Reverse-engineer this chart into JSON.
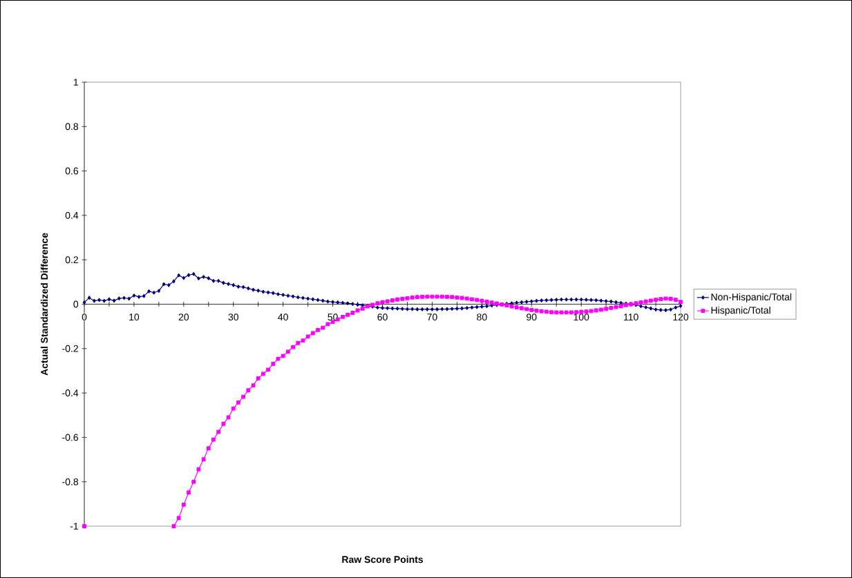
{
  "chart_data": {
    "type": "line",
    "xlabel": "Raw Score Points",
    "ylabel": "Actual Standardized Difference",
    "x": [
      0,
      1,
      2,
      3,
      4,
      5,
      6,
      7,
      8,
      9,
      10,
      11,
      12,
      13,
      14,
      15,
      16,
      17,
      18,
      19,
      20,
      21,
      22,
      23,
      24,
      25,
      26,
      27,
      28,
      29,
      30,
      31,
      32,
      33,
      34,
      35,
      36,
      37,
      38,
      39,
      40,
      41,
      42,
      43,
      44,
      45,
      46,
      47,
      48,
      49,
      50,
      51,
      52,
      53,
      54,
      55,
      56,
      57,
      58,
      59,
      60,
      61,
      62,
      63,
      64,
      65,
      66,
      67,
      68,
      69,
      70,
      71,
      72,
      73,
      74,
      75,
      76,
      77,
      78,
      79,
      80,
      81,
      82,
      83,
      84,
      85,
      86,
      87,
      88,
      89,
      90,
      91,
      92,
      93,
      94,
      95,
      96,
      97,
      98,
      99,
      100,
      101,
      102,
      103,
      104,
      105,
      106,
      107,
      108,
      109,
      110,
      111,
      112,
      113,
      114,
      115,
      116,
      117,
      118,
      119,
      120
    ],
    "series": [
      {
        "name": "Non-Hispanic/Total",
        "color": "#000080",
        "marker": "diamond",
        "values": [
          0.008,
          0.029,
          0.015,
          0.019,
          0.015,
          0.022,
          0.016,
          0.026,
          0.028,
          0.025,
          0.039,
          0.033,
          0.037,
          0.058,
          0.052,
          0.06,
          0.09,
          0.086,
          0.103,
          0.13,
          0.118,
          0.131,
          0.136,
          0.116,
          0.123,
          0.117,
          0.105,
          0.105,
          0.096,
          0.091,
          0.086,
          0.079,
          0.077,
          0.071,
          0.065,
          0.061,
          0.056,
          0.053,
          0.05,
          0.045,
          0.042,
          0.038,
          0.035,
          0.031,
          0.028,
          0.025,
          0.022,
          0.019,
          0.016,
          0.012,
          0.01,
          0.008,
          0.006,
          0.004,
          0.001,
          -0.002,
          -0.005,
          -0.008,
          -0.011,
          -0.015,
          -0.017,
          -0.018,
          -0.019,
          -0.02,
          -0.021,
          -0.022,
          -0.022,
          -0.023,
          -0.023,
          -0.023,
          -0.023,
          -0.023,
          -0.022,
          -0.022,
          -0.021,
          -0.02,
          -0.019,
          -0.017,
          -0.015,
          -0.013,
          -0.011,
          -0.009,
          -0.006,
          -0.004,
          -0.001,
          0.002,
          0.004,
          0.007,
          0.009,
          0.011,
          0.013,
          0.015,
          0.017,
          0.018,
          0.019,
          0.02,
          0.021,
          0.021,
          0.021,
          0.021,
          0.021,
          0.02,
          0.019,
          0.018,
          0.016,
          0.014,
          0.012,
          0.009,
          0.006,
          0.003,
          0,
          -0.004,
          -0.009,
          -0.014,
          -0.019,
          -0.024,
          -0.026,
          -0.027,
          -0.024,
          -0.015,
          -0.008
        ]
      },
      {
        "name": "Hispanic/Total",
        "color": "#ff00ff",
        "marker": "square",
        "values": [
          -1,
          null,
          null,
          null,
          null,
          null,
          null,
          null,
          null,
          null,
          null,
          null,
          null,
          null,
          null,
          null,
          null,
          null,
          -1,
          -0.963,
          -0.903,
          -0.848,
          -0.8,
          -0.744,
          -0.699,
          -0.649,
          -0.61,
          -0.575,
          -0.539,
          -0.51,
          -0.47,
          -0.443,
          -0.417,
          -0.388,
          -0.366,
          -0.334,
          -0.314,
          -0.295,
          -0.269,
          -0.246,
          -0.233,
          -0.214,
          -0.193,
          -0.175,
          -0.164,
          -0.146,
          -0.13,
          -0.116,
          -0.106,
          -0.09,
          -0.08,
          -0.069,
          -0.057,
          -0.048,
          -0.039,
          -0.028,
          -0.02,
          -0.01,
          -0.003,
          0.004,
          0.009,
          0.013,
          0.017,
          0.021,
          0.024,
          0.027,
          0.03,
          0.032,
          0.033,
          0.034,
          0.034,
          0.034,
          0.034,
          0.033,
          0.032,
          0.03,
          0.028,
          0.025,
          0.022,
          0.019,
          0.015,
          0.011,
          0.007,
          0.003,
          -0.001,
          -0.005,
          -0.01,
          -0.014,
          -0.018,
          -0.022,
          -0.026,
          -0.029,
          -0.032,
          -0.034,
          -0.036,
          -0.037,
          -0.037,
          -0.037,
          -0.037,
          -0.036,
          -0.035,
          -0.033,
          -0.031,
          -0.028,
          -0.025,
          -0.021,
          -0.017,
          -0.013,
          -0.009,
          -0.004,
          0,
          0.004,
          0.008,
          0.012,
          0.016,
          0.02,
          0.023,
          0.025,
          0.024,
          0.02,
          0.01
        ]
      }
    ],
    "xlim": [
      0,
      120
    ],
    "ylim": [
      -1,
      1
    ],
    "xticks": [
      0,
      {
        "value": 5,
        "label": null
      },
      10,
      {
        "value": 15,
        "label": null
      },
      20,
      {
        "value": 25,
        "label": null
      },
      30,
      {
        "value": 35,
        "label": null
      },
      40,
      {
        "value": 45,
        "label": null
      },
      50,
      {
        "value": 55,
        "label": null
      },
      60,
      {
        "value": 65,
        "label": null
      },
      70,
      {
        "value": 75,
        "label": null
      },
      80,
      {
        "value": 85,
        "label": null
      },
      90,
      {
        "value": 95,
        "label": null
      },
      100,
      {
        "value": 105,
        "label": null
      },
      110,
      {
        "value": 115,
        "label": null
      },
      120
    ],
    "yticks": [
      -1,
      -0.8,
      -0.6,
      -0.4,
      -0.2,
      0,
      0.2,
      0.4,
      0.6,
      0.8,
      1
    ],
    "grid": false,
    "legend": "right"
  }
}
